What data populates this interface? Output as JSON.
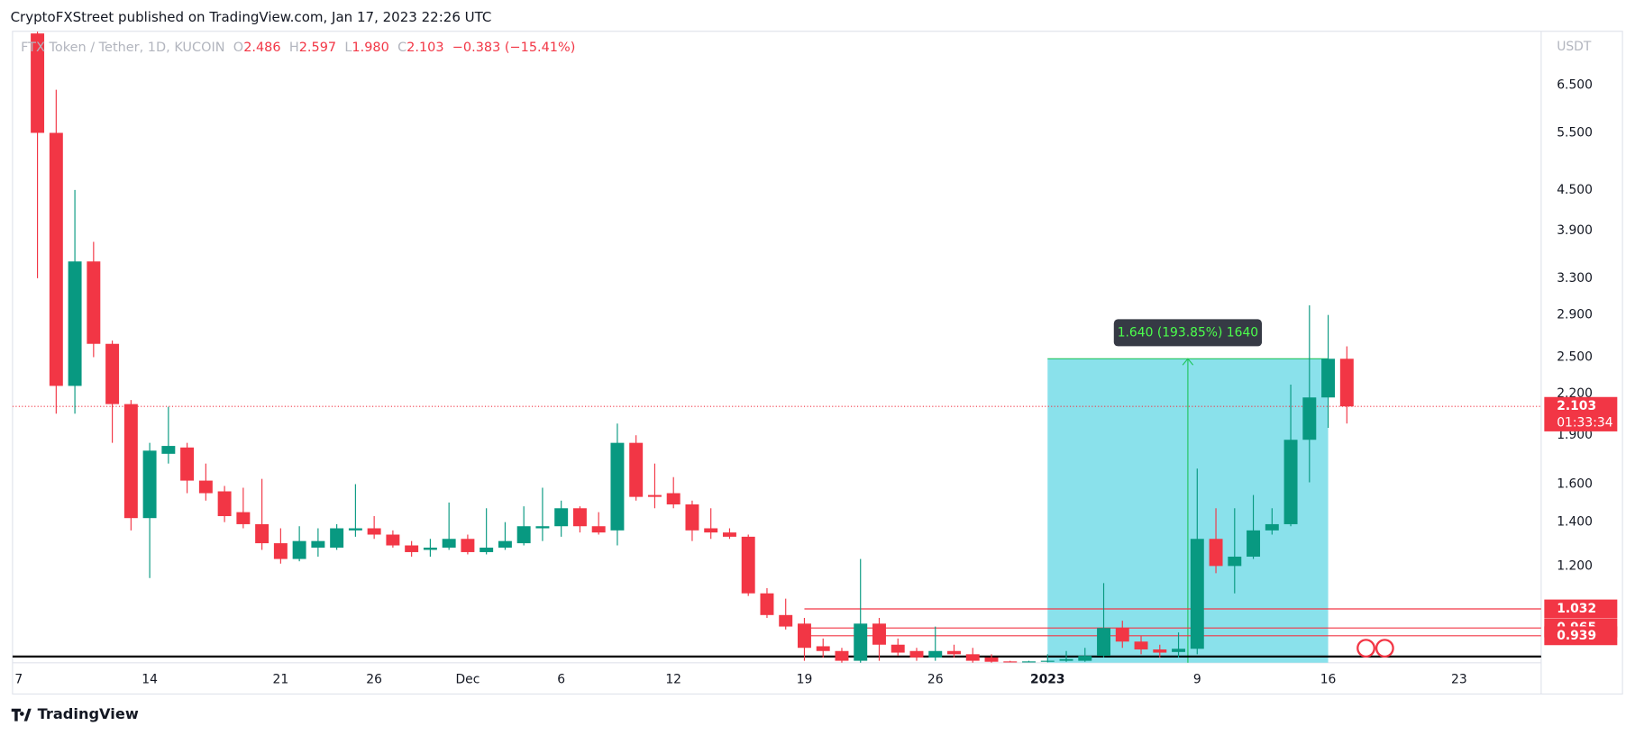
{
  "header": {
    "published": "CryptoFXStreet published on TradingView.com, Jan 17, 2023 22:26 UTC"
  },
  "footer": {
    "brand": "TradingView"
  },
  "chart_data": {
    "type": "candlestick",
    "legend": {
      "symbol": "FTX Token / Tether, 1D, KUCOIN",
      "o_label": "O",
      "o": "2.486",
      "h_label": "H",
      "h": "2.597",
      "l_label": "L",
      "l": "1.980",
      "c_label": "C",
      "c": "2.103",
      "change": "−0.383 (−15.41%)"
    },
    "y_unit": "USDT",
    "yscale": "log",
    "up_color": "#089981",
    "down_color": "#f23645",
    "x": [
      "2022-11-08",
      "2022-11-09",
      "2022-11-10",
      "2022-11-11",
      "2022-11-12",
      "2022-11-13",
      "2022-11-14",
      "2022-11-15",
      "2022-11-16",
      "2022-11-17",
      "2022-11-18",
      "2022-11-19",
      "2022-11-20",
      "2022-11-21",
      "2022-11-22",
      "2022-11-23",
      "2022-11-24",
      "2022-11-25",
      "2022-11-26",
      "2022-11-27",
      "2022-11-28",
      "2022-11-29",
      "2022-11-30",
      "2022-12-01",
      "2022-12-02",
      "2022-12-03",
      "2022-12-04",
      "2022-12-05",
      "2022-12-06",
      "2022-12-07",
      "2022-12-08",
      "2022-12-09",
      "2022-12-10",
      "2022-12-11",
      "2022-12-12",
      "2022-12-13",
      "2022-12-14",
      "2022-12-15",
      "2022-12-16",
      "2022-12-17",
      "2022-12-18",
      "2022-12-19",
      "2022-12-20",
      "2022-12-21",
      "2022-12-22",
      "2022-12-23",
      "2022-12-24",
      "2022-12-25",
      "2022-12-26",
      "2022-12-27",
      "2022-12-28",
      "2022-12-29",
      "2022-12-30",
      "2022-12-31",
      "2023-01-01",
      "2023-01-02",
      "2023-01-03",
      "2023-01-04",
      "2023-01-05",
      "2023-01-06",
      "2023-01-07",
      "2023-01-08",
      "2023-01-09",
      "2023-01-10",
      "2023-01-11",
      "2023-01-12",
      "2023-01-13",
      "2023-01-14",
      "2023-01-15",
      "2023-01-16",
      "2023-01-17"
    ],
    "open": [
      7.8,
      5.5,
      2.26,
      3.5,
      2.62,
      2.12,
      1.42,
      1.78,
      1.82,
      1.62,
      1.56,
      1.45,
      1.39,
      1.3,
      1.23,
      1.28,
      1.28,
      1.36,
      1.37,
      1.34,
      1.29,
      1.27,
      1.28,
      1.32,
      1.26,
      1.28,
      1.3,
      1.37,
      1.38,
      1.47,
      1.38,
      1.36,
      1.85,
      1.54,
      1.55,
      1.49,
      1.37,
      1.35,
      1.33,
      1.09,
      1.01,
      0.98,
      0.905,
      0.89,
      0.86,
      0.98,
      0.91,
      0.89,
      0.87,
      0.89,
      0.88,
      0.87,
      0.858,
      0.857,
      0.857,
      0.86,
      0.86,
      0.875,
      0.965,
      0.92,
      0.895,
      0.887,
      0.897,
      1.32,
      1.2,
      1.24,
      1.36,
      1.39,
      1.87,
      2.17,
      2.486
    ],
    "high": [
      7.85,
      6.4,
      4.5,
      3.75,
      2.65,
      2.15,
      1.85,
      2.1,
      1.85,
      1.72,
      1.59,
      1.58,
      1.63,
      1.37,
      1.38,
      1.37,
      1.39,
      1.6,
      1.43,
      1.36,
      1.31,
      1.32,
      1.5,
      1.34,
      1.47,
      1.4,
      1.48,
      1.58,
      1.51,
      1.48,
      1.45,
      1.98,
      1.9,
      1.72,
      1.64,
      1.51,
      1.47,
      1.37,
      1.34,
      1.11,
      1.07,
      1.0,
      0.93,
      0.9,
      1.23,
      1.0,
      0.93,
      0.9,
      0.97,
      0.91,
      0.9,
      0.88,
      0.86,
      0.86,
      0.88,
      0.89,
      0.9,
      1.13,
      0.99,
      0.94,
      0.91,
      0.95,
      1.69,
      1.47,
      1.47,
      1.54,
      1.47,
      2.27,
      3.0,
      2.9,
      2.597
    ],
    "low": [
      3.3,
      2.05,
      2.05,
      2.5,
      1.85,
      1.36,
      1.15,
      1.72,
      1.55,
      1.51,
      1.4,
      1.37,
      1.27,
      1.21,
      1.22,
      1.24,
      1.27,
      1.33,
      1.32,
      1.28,
      1.24,
      1.24,
      1.27,
      1.25,
      1.25,
      1.27,
      1.29,
      1.31,
      1.33,
      1.35,
      1.34,
      1.29,
      1.51,
      1.47,
      1.47,
      1.31,
      1.32,
      1.32,
      1.08,
      1.0,
      0.96,
      0.86,
      0.87,
      0.85,
      0.85,
      0.86,
      0.875,
      0.86,
      0.86,
      0.87,
      0.85,
      0.85,
      0.856,
      0.856,
      0.855,
      0.857,
      0.857,
      0.87,
      0.9,
      0.88,
      0.87,
      0.87,
      0.88,
      1.17,
      1.09,
      1.23,
      1.34,
      1.38,
      1.61,
      1.95,
      1.98
    ],
    "close": [
      5.5,
      2.26,
      3.5,
      2.62,
      2.12,
      1.42,
      1.8,
      1.83,
      1.62,
      1.55,
      1.43,
      1.39,
      1.3,
      1.23,
      1.31,
      1.31,
      1.37,
      1.37,
      1.34,
      1.29,
      1.26,
      1.28,
      1.32,
      1.26,
      1.28,
      1.31,
      1.38,
      1.38,
      1.47,
      1.38,
      1.35,
      1.85,
      1.53,
      1.53,
      1.49,
      1.36,
      1.35,
      1.33,
      1.09,
      1.01,
      0.97,
      0.9,
      0.89,
      0.86,
      0.98,
      0.91,
      0.885,
      0.87,
      0.89,
      0.88,
      0.86,
      0.857,
      0.857,
      0.858,
      0.86,
      0.865,
      0.875,
      0.965,
      0.92,
      0.895,
      0.885,
      0.897,
      1.32,
      1.2,
      1.24,
      1.36,
      1.39,
      1.87,
      2.17,
      2.486,
      2.103
    ],
    "xlim": [
      "2022-11-07",
      "2023-01-28"
    ],
    "xticks": [
      {
        "value": "2022-11-07",
        "label": "7"
      },
      {
        "value": "2022-11-14",
        "label": "14"
      },
      {
        "value": "2022-11-21",
        "label": "21"
      },
      {
        "value": "2022-11-26",
        "label": "26"
      },
      {
        "value": "2022-12-01",
        "label": "Dec"
      },
      {
        "value": "2022-12-06",
        "label": "6"
      },
      {
        "value": "2022-12-12",
        "label": "12"
      },
      {
        "value": "2022-12-19",
        "label": "19"
      },
      {
        "value": "2022-12-26",
        "label": "26"
      },
      {
        "value": "2023-01-01",
        "label": "2023"
      },
      {
        "value": "2023-01-09",
        "label": "9"
      },
      {
        "value": "2023-01-16",
        "label": "16"
      },
      {
        "value": "2023-01-23",
        "label": "23"
      }
    ],
    "ylim": [
      0.854,
      7.86
    ],
    "yticks": [
      {
        "value": 6.5,
        "label": "6.500"
      },
      {
        "value": 5.5,
        "label": "5.500"
      },
      {
        "value": 4.5,
        "label": "4.500"
      },
      {
        "value": 3.9,
        "label": "3.900"
      },
      {
        "value": 3.3,
        "label": "3.300"
      },
      {
        "value": 2.9,
        "label": "2.900"
      },
      {
        "value": 2.5,
        "label": "2.500"
      },
      {
        "value": 2.2,
        "label": "2.200"
      },
      {
        "value": 1.9,
        "label": "1.900"
      },
      {
        "value": 1.6,
        "label": "1.600"
      },
      {
        "value": 1.4,
        "label": "1.400"
      },
      {
        "value": 1.2,
        "label": "1.200"
      }
    ],
    "last_price": {
      "value": 2.103,
      "countdown": "01:33:34"
    },
    "levels": [
      {
        "value": 1.032,
        "from": "2022-12-19"
      },
      {
        "value": 0.965,
        "from": "2022-12-19"
      },
      {
        "value": 0.939,
        "from": "2022-12-19"
      }
    ],
    "support_line": 0.873,
    "measure": {
      "label": "1.640 (193.85%) 1640",
      "low": 0.846,
      "high": 2.486,
      "from": "2023-01-01",
      "to": "2023-01-16"
    }
  }
}
